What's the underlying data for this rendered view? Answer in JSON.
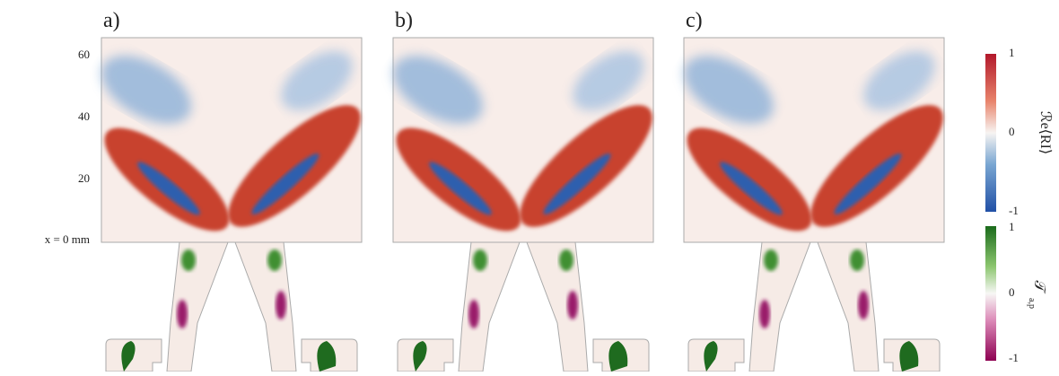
{
  "panels": [
    {
      "label": "a)"
    },
    {
      "label": "b)"
    },
    {
      "label": "c)"
    }
  ],
  "y_axis": {
    "ticks": [
      "60",
      "40",
      "20"
    ],
    "origin_label": "x = 0 mm"
  },
  "colorbars": [
    {
      "label": "ℛe⟨RI⟩",
      "ticks": [
        "1",
        "0",
        "-1"
      ]
    },
    {
      "label": "𝒯",
      "subscript": "a,p",
      "ticks": [
        "1",
        "0",
        "-1"
      ]
    }
  ]
}
